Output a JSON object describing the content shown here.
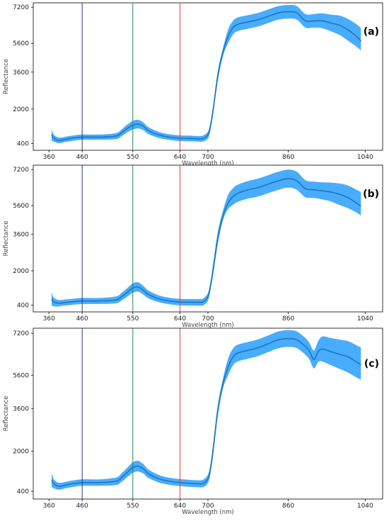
{
  "chart_data": [
    {
      "type": "line",
      "panel_label": "(a)",
      "xlabel": "Wavelength (nm)",
      "ylabel": "Reflectance",
      "xlim": [
        340,
        1060
      ],
      "ylim": [
        0,
        7500
      ],
      "x_ticks": [
        360,
        460,
        550,
        640,
        700,
        860,
        1040
      ],
      "y_ticks": [
        400,
        2000,
        3600,
        5600,
        7200
      ],
      "vertical_lines": [
        {
          "x": 460,
          "color": "#1f3c8c"
        },
        {
          "x": 550,
          "color": "#1f8a5a"
        },
        {
          "x": 640,
          "color": "#d94040"
        }
      ],
      "series": [
        {
          "color": "#1f77b4",
          "band_color": "#3ea8ff",
          "x": [
            368,
            375,
            390,
            410,
            430,
            460,
            490,
            520,
            530,
            540,
            550,
            560,
            570,
            580,
            600,
            620,
            640,
            660,
            680,
            690,
            700,
            705,
            710,
            720,
            730,
            740,
            750,
            760,
            780,
            800,
            820,
            840,
            860,
            880,
            900,
            920,
            940,
            960,
            980,
            1000,
            1020,
            1030
          ],
          "y": [
            800,
            650,
            550,
            600,
            650,
            700,
            700,
            750,
            900,
            1100,
            1250,
            1300,
            1200,
            1000,
            800,
            700,
            650,
            640,
            620,
            640,
            800,
            1200,
            1900,
            3500,
            5000,
            5900,
            6300,
            6450,
            6550,
            6650,
            6800,
            6950,
            7000,
            6950,
            6600,
            6600,
            6600,
            6500,
            6400,
            6200,
            5900,
            5700
          ],
          "band": [
            260,
            160,
            130,
            120,
            120,
            120,
            120,
            140,
            160,
            180,
            200,
            200,
            180,
            160,
            140,
            130,
            130,
            130,
            130,
            140,
            160,
            180,
            200,
            240,
            280,
            300,
            300,
            300,
            300,
            300,
            300,
            300,
            300,
            300,
            300,
            300,
            330,
            370,
            430,
            480,
            540,
            580
          ]
        }
      ]
    },
    {
      "type": "line",
      "panel_label": "(b)",
      "xlabel": "Wavelength (nm)",
      "ylabel": "Reflectance",
      "xlim": [
        340,
        1060
      ],
      "ylim": [
        0,
        7500
      ],
      "x_ticks": [
        360,
        460,
        550,
        640,
        700,
        860,
        1040
      ],
      "y_ticks": [
        400,
        2000,
        3600,
        5600,
        7200
      ],
      "vertical_lines": [
        {
          "x": 460,
          "color": "#1f3c8c"
        },
        {
          "x": 550,
          "color": "#1f8a5a"
        },
        {
          "x": 640,
          "color": "#d94040"
        }
      ],
      "series": [
        {
          "color": "#1f77b4",
          "band_color": "#3ea8ff",
          "x": [
            368,
            375,
            390,
            410,
            430,
            460,
            490,
            520,
            530,
            540,
            550,
            560,
            570,
            580,
            600,
            620,
            640,
            660,
            680,
            690,
            700,
            705,
            710,
            720,
            730,
            740,
            750,
            760,
            780,
            800,
            820,
            840,
            860,
            880,
            900,
            920,
            940,
            960,
            980,
            1000,
            1020,
            1030
          ],
          "y": [
            700,
            550,
            500,
            530,
            560,
            600,
            600,
            650,
            800,
            1000,
            1200,
            1250,
            1100,
            900,
            700,
            600,
            550,
            540,
            540,
            560,
            800,
            1300,
            2000,
            3500,
            4900,
            5700,
            6000,
            6150,
            6300,
            6400,
            6550,
            6700,
            6800,
            6700,
            6350,
            6300,
            6250,
            6200,
            6100,
            5950,
            5700,
            5550
          ],
          "band": [
            300,
            200,
            150,
            140,
            140,
            140,
            140,
            160,
            180,
            200,
            220,
            220,
            200,
            180,
            160,
            150,
            150,
            150,
            150,
            160,
            180,
            200,
            240,
            300,
            340,
            360,
            370,
            380,
            390,
            400,
            400,
            400,
            400,
            400,
            380,
            360,
            380,
            420,
            480,
            540,
            600,
            640
          ]
        }
      ]
    },
    {
      "type": "line",
      "panel_label": "(c)",
      "xlabel": "Wavelength (nm)",
      "ylabel": "Reflectance",
      "xlim": [
        340,
        1060
      ],
      "ylim": [
        0,
        7500
      ],
      "x_ticks": [
        360,
        460,
        550,
        640,
        700,
        860,
        1040
      ],
      "y_ticks": [
        400,
        2000,
        3600,
        5600,
        7200
      ],
      "vertical_lines": [
        {
          "x": 460,
          "color": "#1f3c8c"
        },
        {
          "x": 550,
          "color": "#1f8a5a"
        },
        {
          "x": 640,
          "color": "#d94040"
        }
      ],
      "series": [
        {
          "color": "#1f77b4",
          "band_color": "#3ea8ff",
          "x": [
            368,
            375,
            390,
            410,
            430,
            460,
            490,
            520,
            530,
            540,
            550,
            560,
            570,
            580,
            600,
            620,
            640,
            660,
            680,
            690,
            700,
            705,
            710,
            720,
            730,
            740,
            750,
            760,
            780,
            800,
            820,
            840,
            860,
            880,
            900,
            910,
            920,
            930,
            940,
            960,
            980,
            1000,
            1020,
            1030
          ],
          "y": [
            850,
            700,
            600,
            650,
            700,
            750,
            750,
            800,
            950,
            1150,
            1350,
            1400,
            1300,
            1100,
            900,
            800,
            750,
            720,
            700,
            720,
            900,
            1300,
            2000,
            3600,
            5100,
            5900,
            6300,
            6450,
            6550,
            6650,
            6800,
            6950,
            7000,
            6950,
            6700,
            6500,
            6200,
            6500,
            6600,
            6500,
            6400,
            6300,
            6100,
            6000
          ],
          "band": [
            280,
            180,
            140,
            130,
            130,
            130,
            130,
            150,
            170,
            190,
            210,
            210,
            190,
            170,
            150,
            140,
            140,
            140,
            140,
            150,
            170,
            190,
            220,
            260,
            300,
            320,
            320,
            320,
            320,
            320,
            320,
            320,
            320,
            320,
            320,
            320,
            340,
            400,
            480,
            520,
            560,
            600,
            640,
            660
          ]
        }
      ]
    }
  ]
}
